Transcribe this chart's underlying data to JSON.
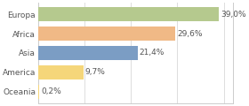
{
  "categories": [
    "Europa",
    "Africa",
    "Asia",
    "America",
    "Oceania"
  ],
  "values": [
    39.0,
    29.6,
    21.4,
    9.7,
    0.2
  ],
  "bar_colors": [
    "#b5c98e",
    "#f0b986",
    "#7b9dc4",
    "#f5d67a",
    "#f5d67a"
  ],
  "labels": [
    "39,0%",
    "29,6%",
    "21,4%",
    "9,7%",
    "0,2%"
  ],
  "xlim": [
    0,
    42
  ],
  "background_color": "#ffffff",
  "label_fontsize": 6.5,
  "tick_fontsize": 6.5,
  "bar_height": 0.75,
  "grid_color": "#dddddd",
  "spine_color": "#cccccc",
  "text_color": "#555555"
}
